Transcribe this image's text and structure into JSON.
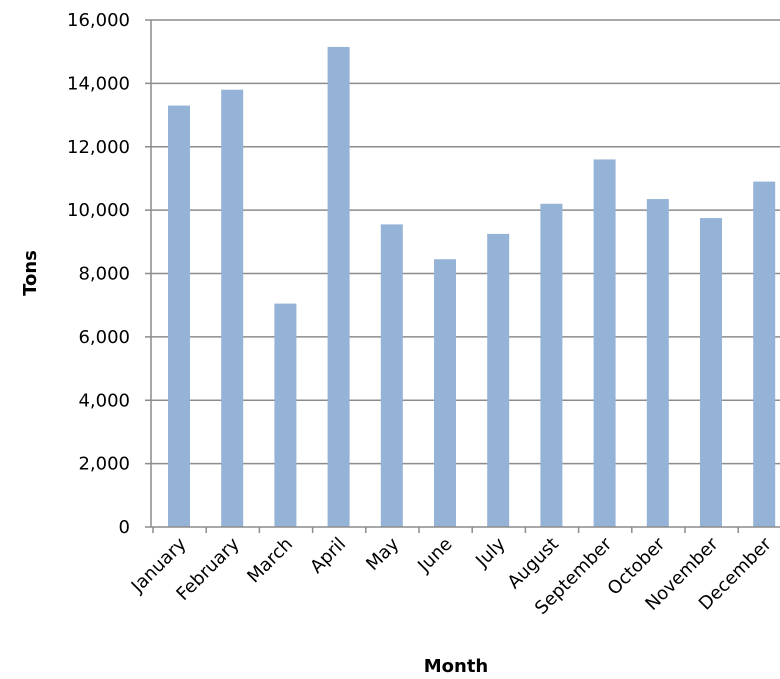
{
  "chart_data": {
    "type": "bar",
    "title": "",
    "xlabel": "Month",
    "ylabel": "Tons",
    "ylim": [
      0,
      16000
    ],
    "yticks": [
      0,
      2000,
      4000,
      6000,
      8000,
      10000,
      12000,
      14000,
      16000
    ],
    "ytick_labels": [
      "0",
      "2,000",
      "4,000",
      "6,000",
      "8,000",
      "10,000",
      "12,000",
      "14,000",
      "16,000"
    ],
    "categories": [
      "January",
      "February",
      "March",
      "April",
      "May",
      "June",
      "July",
      "August",
      "September",
      "October",
      "November",
      "December"
    ],
    "values": [
      13300,
      13800,
      7050,
      15150,
      9550,
      8450,
      9250,
      10200,
      11600,
      10350,
      9750,
      10900
    ],
    "grid": true,
    "legend": "none",
    "colors": {
      "bar": "#95b3d7",
      "grid": "#8c8c8c",
      "axis": "#8c8c8c"
    }
  }
}
